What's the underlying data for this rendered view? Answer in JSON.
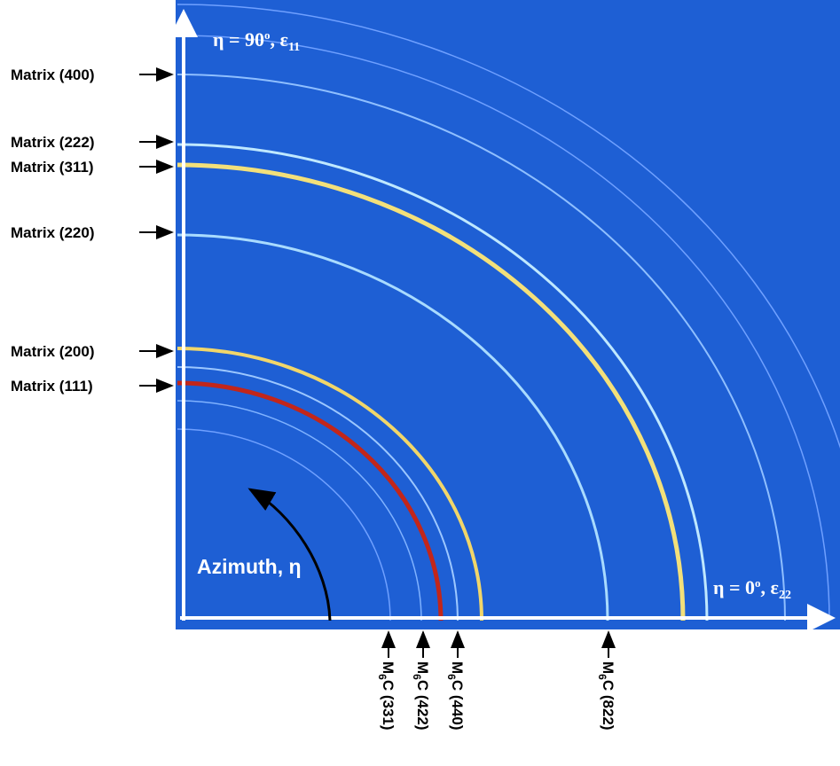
{
  "matrix_labels": [
    "Matrix (400)",
    "Matrix (222)",
    "Matrix (311)",
    "Matrix (220)",
    "Matrix (200)",
    "Matrix (111)"
  ],
  "m6c_labels": [
    {
      "m": "M",
      "sub": "6",
      "rest": "C (331)"
    },
    {
      "m": "M",
      "sub": "6",
      "rest": "C (422)"
    },
    {
      "m": "M",
      "sub": "6",
      "rest": "C (440)"
    },
    {
      "m": "M",
      "sub": "6",
      "rest": "C (822)"
    }
  ],
  "axis_labels": {
    "top": {
      "text": "η = 90",
      "sup": "o",
      "mid": ", ε",
      "sub": "11"
    },
    "right": {
      "text": "η = 0",
      "sup": "o",
      "mid": ", ε",
      "sub": "22"
    },
    "azimuth": "Azimuth, η"
  }
}
